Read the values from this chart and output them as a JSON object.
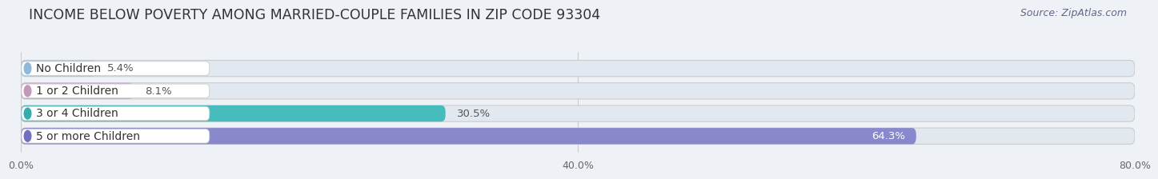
{
  "title": "INCOME BELOW POVERTY AMONG MARRIED-COUPLE FAMILIES IN ZIP CODE 93304",
  "source": "Source: ZipAtlas.com",
  "categories": [
    "No Children",
    "1 or 2 Children",
    "3 or 4 Children",
    "5 or more Children"
  ],
  "values": [
    5.4,
    8.1,
    30.5,
    64.3
  ],
  "bar_colors": [
    "#a8c4e0",
    "#caaec8",
    "#47bcbc",
    "#8888cc"
  ],
  "label_dot_colors": [
    "#90b8d8",
    "#c09ab8",
    "#38acac",
    "#7070be"
  ],
  "background_color": "#eef2f7",
  "bar_bg_color": "#e2e8ef",
  "xlim": [
    0,
    80
  ],
  "xticks": [
    0.0,
    40.0,
    80.0
  ],
  "xtick_labels": [
    "0.0%",
    "40.0%",
    "80.0%"
  ],
  "title_fontsize": 12.5,
  "source_fontsize": 9,
  "label_fontsize": 10,
  "value_fontsize": 9.5,
  "bar_height": 0.72,
  "bar_gap": 0.28,
  "fig_width": 14.06,
  "fig_height": 2.32,
  "value_white_threshold": 55
}
